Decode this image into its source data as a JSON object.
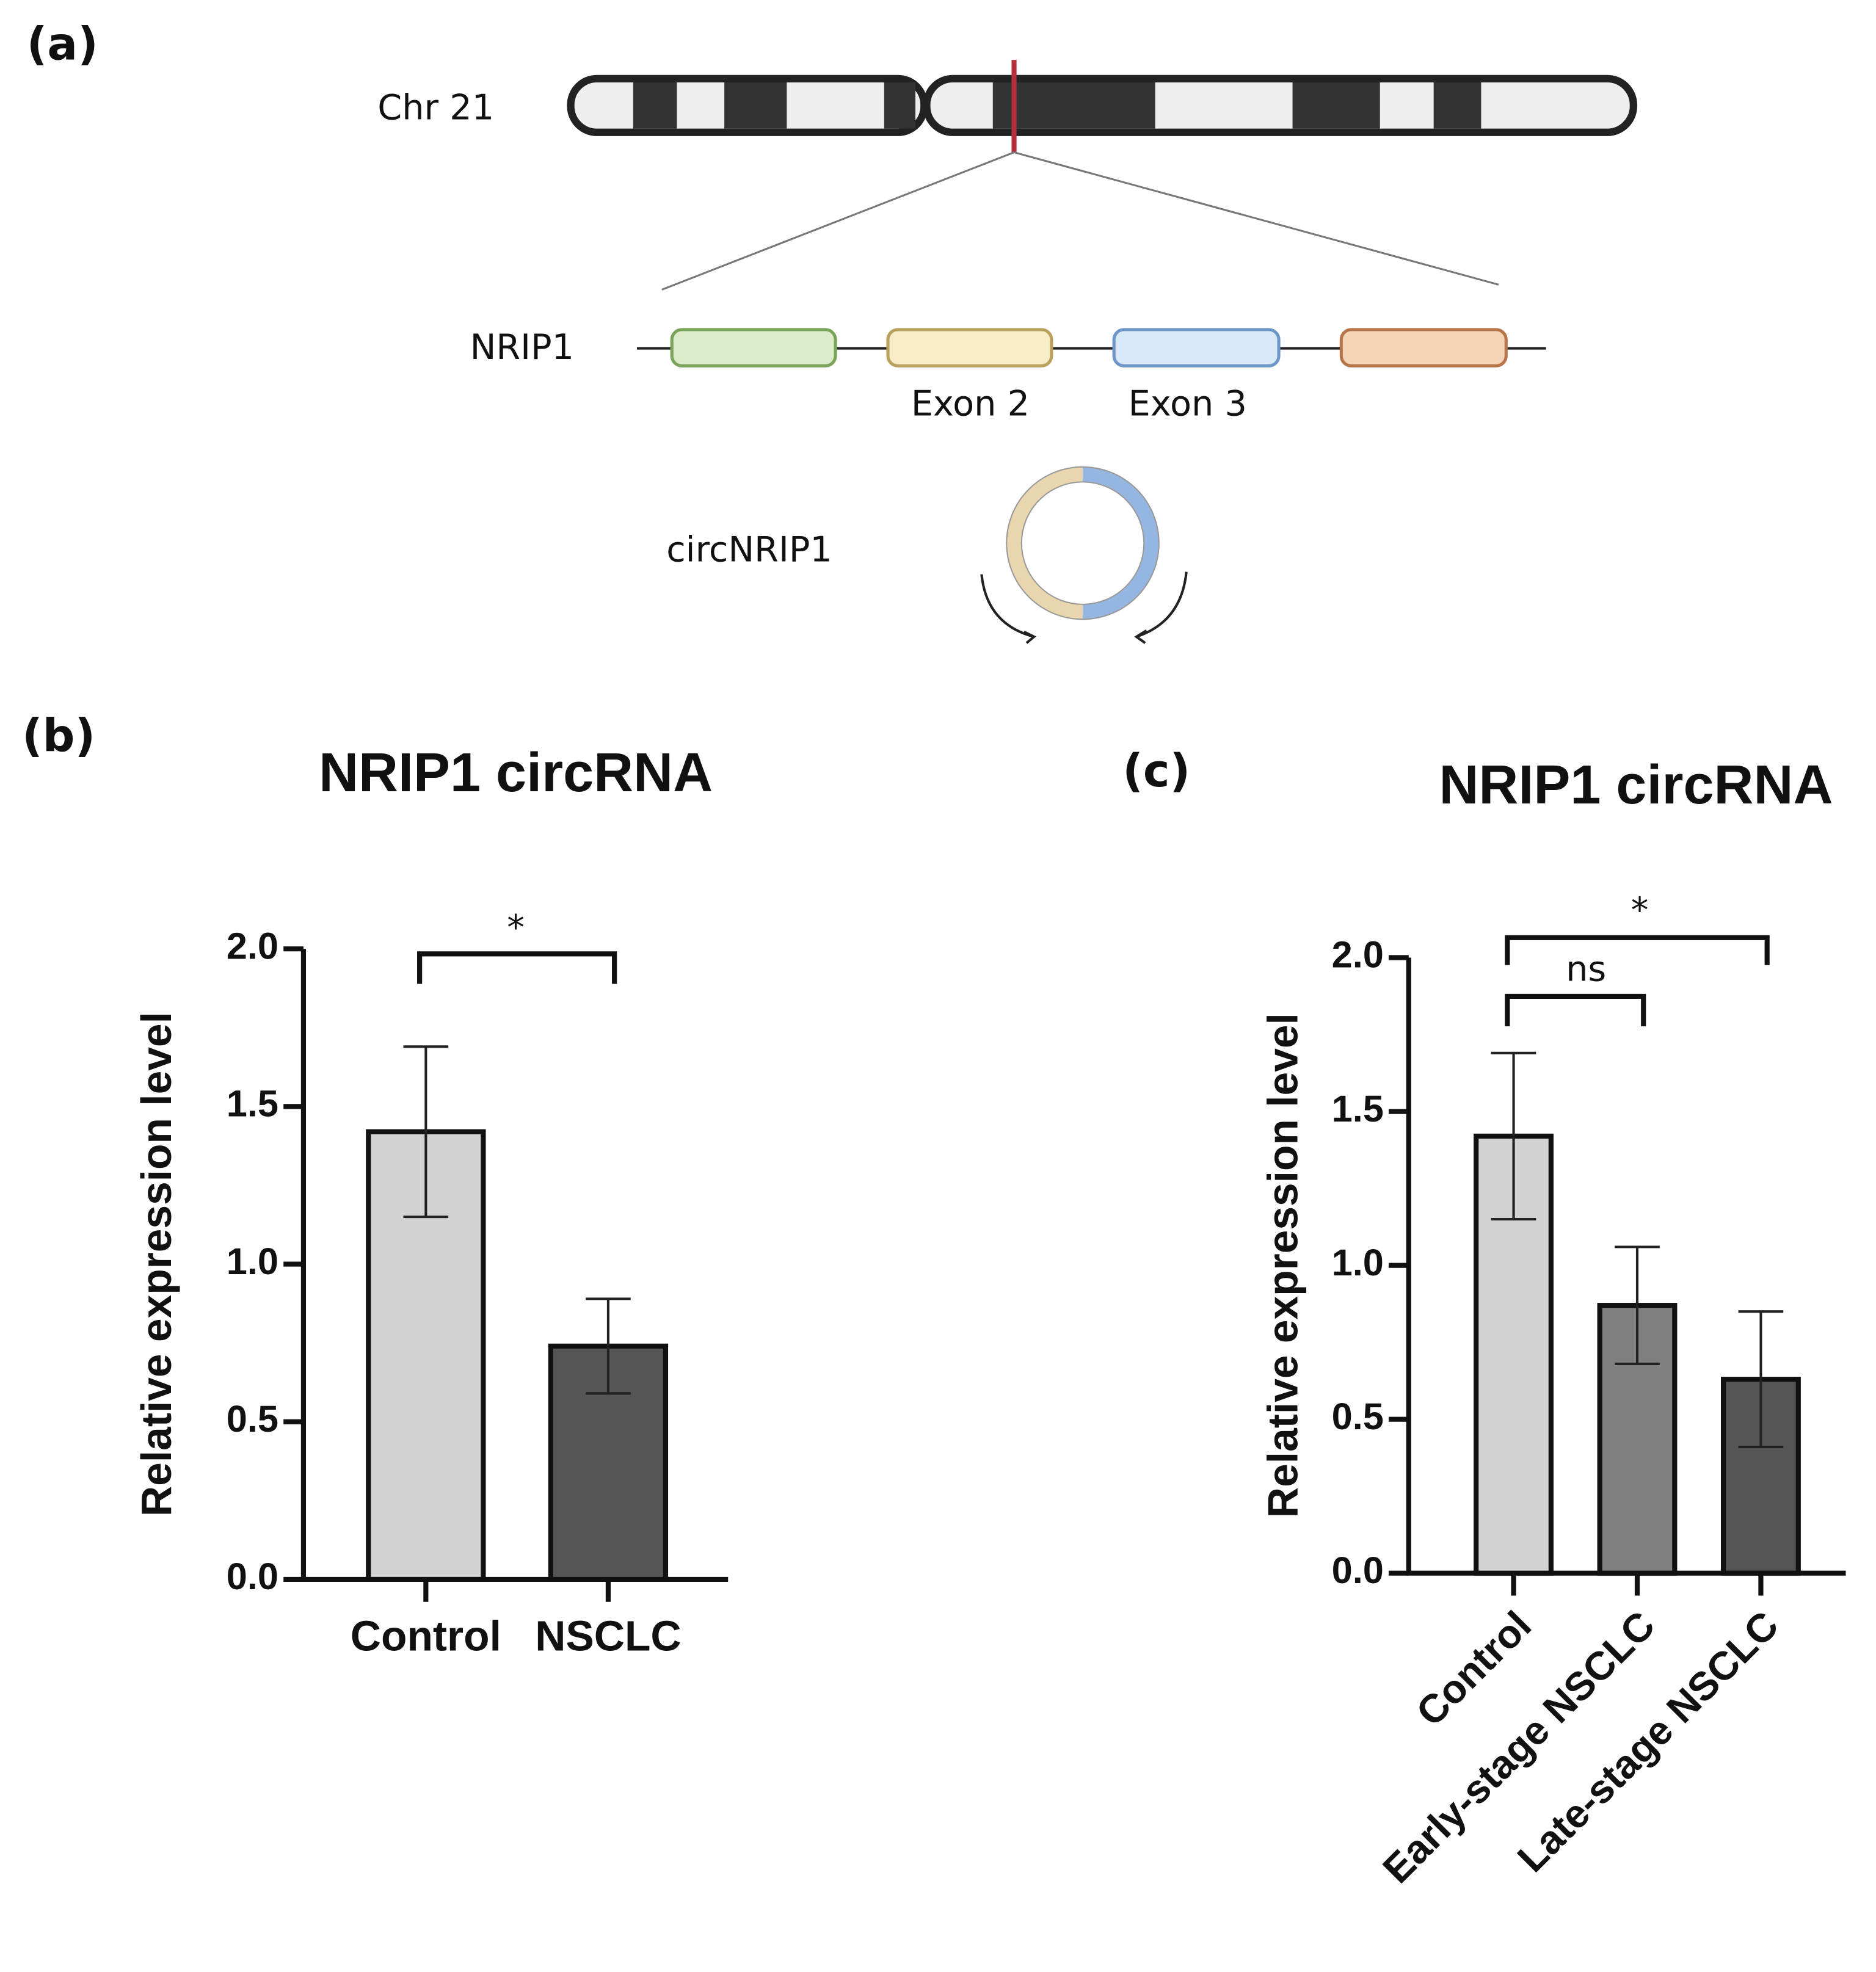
{
  "panel_labels": [
    "(a)",
    "(b)",
    "(c)"
  ],
  "diagram": {
    "chromosome": "Chr 21",
    "gene": "NRIP1",
    "exons": [
      "Exon 2",
      "Exon 3"
    ],
    "circ": "circNRIP1"
  },
  "chart_data": [
    {
      "type": "bar",
      "title": "NRIP1 circRNA",
      "y_label": "Relative expression level",
      "categories": [
        "Control",
        "NSCLC"
      ],
      "values": [
        1.42,
        0.74
      ],
      "errors": [
        0.27,
        0.15
      ],
      "colors": [
        "#d3d3d3",
        "#555555"
      ],
      "annotations": [
        "*"
      ],
      "ylim": [
        0,
        2
      ],
      "yticks": [
        {
          "value": 0,
          "label": "0.0"
        },
        {
          "value": 0.5,
          "label": "0.5"
        },
        {
          "value": 1,
          "label": "1.0"
        },
        {
          "value": 1.5,
          "label": "1.5"
        },
        {
          "value": 2,
          "label": "2.0"
        }
      ]
    },
    {
      "type": "bar",
      "title": "NRIP1 circRNA",
      "y_label": "Relative expression level",
      "categories": [
        "Control",
        "Early-stage NSCLC",
        "Late-stage NSCLC"
      ],
      "values": [
        1.42,
        0.87,
        0.63
      ],
      "errors": [
        0.27,
        0.19,
        0.22
      ],
      "colors": [
        "#d3d3d3",
        "#808080",
        "#555555"
      ],
      "annotations": [
        "ns",
        "*"
      ],
      "ylim": [
        0,
        2
      ],
      "yticks": [
        {
          "value": 0,
          "label": "0.0"
        },
        {
          "value": 0.5,
          "label": "0.5"
        },
        {
          "value": 1,
          "label": "1.0"
        },
        {
          "value": 1.5,
          "label": "1.5"
        },
        {
          "value": 2,
          "label": "2.0"
        }
      ]
    }
  ]
}
